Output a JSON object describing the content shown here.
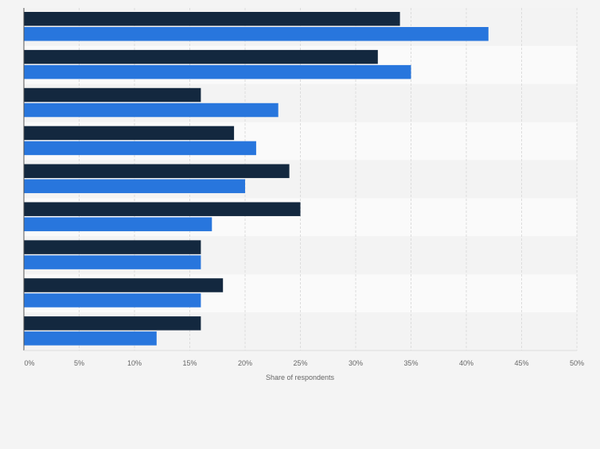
{
  "colors": {
    "series_dark": "#13283f",
    "series_blue": "#2876dd",
    "band_even": "#f3f3f3",
    "band_odd": "#fafafa",
    "grid": "#dcdcdc",
    "axis": "#555555",
    "tick_text": "#666666"
  },
  "chart_data": {
    "type": "bar",
    "orientation": "horizontal",
    "categories": [
      "",
      "",
      "",
      "",
      "",
      "",
      "",
      "",
      ""
    ],
    "series": [
      {
        "values": [
          34,
          32,
          16,
          19,
          24,
          25,
          16,
          18,
          16
        ]
      },
      {
        "values": [
          42,
          35,
          23,
          21,
          20,
          17,
          16,
          16,
          12
        ]
      }
    ],
    "xlabel": "Share of respondents",
    "xlim": [
      0,
      50
    ],
    "xticks": [
      0,
      5,
      10,
      15,
      20,
      25,
      30,
      35,
      40,
      45,
      50
    ],
    "xtick_labels": [
      "0%",
      "5%",
      "10%",
      "15%",
      "20%",
      "25%",
      "30%",
      "35%",
      "40%",
      "45%",
      "50%"
    ],
    "grid": "vertical dashed",
    "legend": "none"
  }
}
